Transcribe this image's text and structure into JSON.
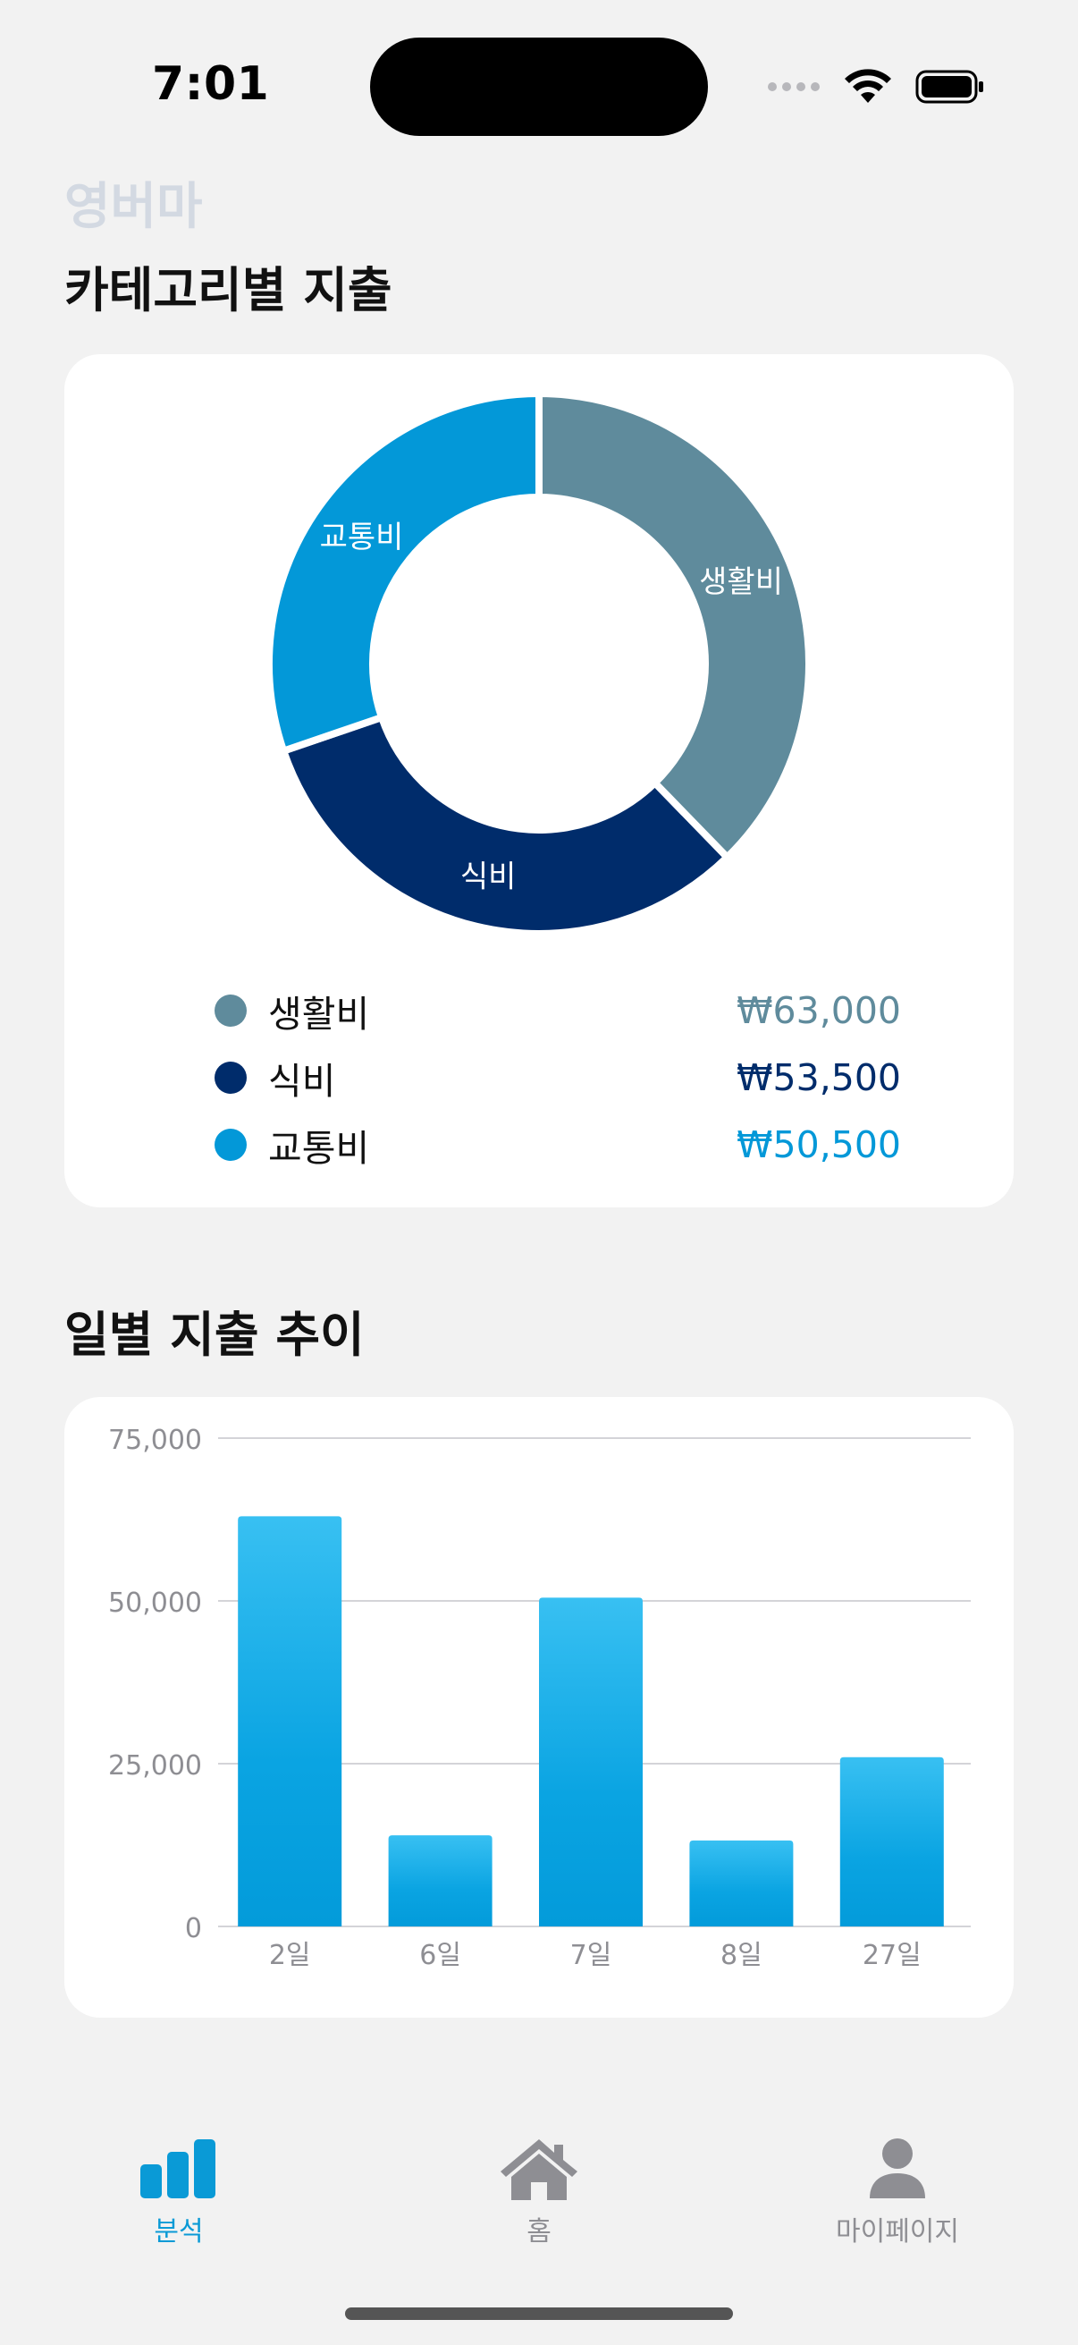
{
  "status_bar": {
    "time": "7:01"
  },
  "header": {
    "app_title": "영버마"
  },
  "category_section": {
    "title": "카테고리별 지출",
    "items": [
      {
        "label": "생활비",
        "amount": "₩63,000",
        "value": 63000,
        "color": "#5f8b9c"
      },
      {
        "label": "식비",
        "amount": "₩53,500",
        "value": 53500,
        "color": "#002c6b"
      },
      {
        "label": "교통비",
        "amount": "₩50,500",
        "value": 50500,
        "color": "#0398d8"
      }
    ]
  },
  "daily_section": {
    "title": "일별 지출 추이"
  },
  "chart_data": {
    "type": "bar",
    "categories": [
      "2일",
      "6일",
      "7일",
      "8일",
      "27일"
    ],
    "values": [
      63000,
      14000,
      50500,
      13200,
      26000
    ],
    "ylim": [
      0,
      75000
    ],
    "yticks": [
      0,
      25000,
      50000,
      75000
    ],
    "ytick_labels": [
      "0",
      "25,000",
      "50,000",
      "75,000"
    ],
    "grid": true,
    "color": "#0aa4e2"
  },
  "tabbar": {
    "tabs": [
      {
        "label": "분석",
        "icon": "bar-chart-icon",
        "active": true
      },
      {
        "label": "홈",
        "icon": "home-icon",
        "active": false
      },
      {
        "label": "마이페이지",
        "icon": "person-icon",
        "active": false
      }
    ],
    "active_color": "#0a9ad6",
    "inactive_color": "#8e8e93"
  }
}
